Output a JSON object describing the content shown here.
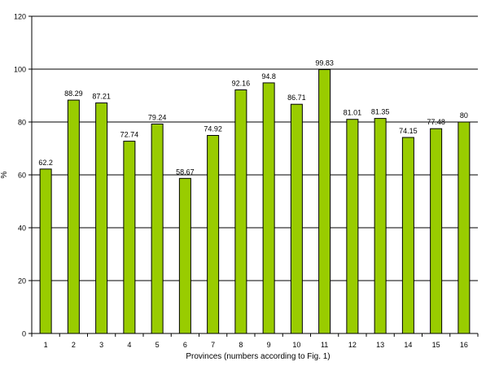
{
  "chart_data": {
    "type": "bar",
    "title": "",
    "xlabel": "Provinces (numbers according to Fig. 1)",
    "ylabel": "%",
    "ylim": [
      0,
      120
    ],
    "yticks": [
      0,
      20,
      40,
      60,
      80,
      100,
      120
    ],
    "grid": true,
    "categories": [
      "1",
      "2",
      "3",
      "4",
      "5",
      "6",
      "7",
      "8",
      "9",
      "10",
      "11",
      "12",
      "13",
      "14",
      "15",
      "16"
    ],
    "values": [
      62.2,
      88.29,
      87.21,
      72.74,
      79.24,
      58.67,
      74.92,
      92.16,
      94.8,
      86.71,
      99.83,
      81.01,
      81.35,
      74.15,
      77.48,
      80
    ],
    "value_labels": [
      "62.2",
      "88.29",
      "87.21",
      "72.74",
      "79.24",
      "58.67",
      "74.92",
      "92.16",
      "94.8",
      "86.71",
      "99.83",
      "81.01",
      "81.35",
      "74.15",
      "77.48",
      "80"
    ],
    "colors": {
      "bar_fill": "#99cc00",
      "bar_stroke": "#000000",
      "grid": "#000000"
    }
  }
}
